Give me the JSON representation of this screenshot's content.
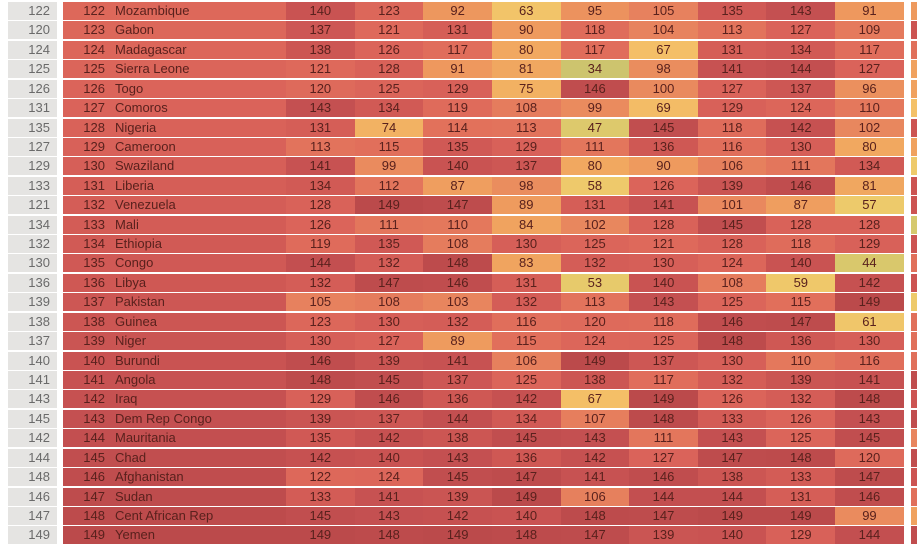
{
  "style": {
    "heat_text_color": "#59211d",
    "left_rank_bg": "#e5e4e2",
    "left_rank_text": "#6a6a6a",
    "row_separator": "#ffffff",
    "heat_stops": [
      [
        34,
        "#cdc46e"
      ],
      [
        47,
        "#ddc96c"
      ],
      [
        57,
        "#edca6b"
      ],
      [
        66,
        "#f4c168"
      ],
      [
        78,
        "#f1ab60"
      ],
      [
        90,
        "#ee9a5e"
      ],
      [
        103,
        "#e8855e"
      ],
      [
        115,
        "#e16f5b"
      ],
      [
        127,
        "#da635a"
      ],
      [
        136,
        "#cf5854"
      ],
      [
        143,
        "#c45051"
      ],
      [
        149,
        "#bb4a4b"
      ]
    ]
  },
  "chart_data": {
    "type": "heatmap",
    "value_range": [
      34,
      149
    ],
    "rows": [
      {
        "rank_alt": 122,
        "rank": 122,
        "country": "Mozambique",
        "values": [
          140,
          123,
          92,
          63,
          95,
          105,
          135,
          143,
          91
        ],
        "edge_color": "#ee9a5e"
      },
      {
        "rank_alt": 120,
        "rank": 123,
        "country": "Gabon",
        "values": [
          137,
          121,
          131,
          90,
          118,
          104,
          113,
          127,
          109
        ],
        "edge_color": "#cc5452"
      },
      {
        "rank_alt": 124,
        "rank": 124,
        "country": "Madagascar",
        "values": [
          138,
          126,
          117,
          80,
          117,
          67,
          131,
          134,
          117
        ],
        "edge_color": "#e0705b"
      },
      {
        "rank_alt": 125,
        "rank": 125,
        "country": "Sierra Leone",
        "values": [
          121,
          128,
          91,
          81,
          34,
          98,
          141,
          144,
          127
        ],
        "edge_color": "#f0a25f"
      },
      {
        "rank_alt": 126,
        "rank": 126,
        "country": "Togo",
        "values": [
          120,
          125,
          129,
          75,
          146,
          100,
          127,
          137,
          96
        ],
        "edge_color": "#f0a25f"
      },
      {
        "rank_alt": 131,
        "rank": 127,
        "country": "Comoros",
        "values": [
          143,
          134,
          119,
          108,
          99,
          69,
          129,
          124,
          110
        ],
        "edge_color": "#f4c168"
      },
      {
        "rank_alt": 135,
        "rank": 128,
        "country": "Nigeria",
        "values": [
          131,
          74,
          114,
          113,
          47,
          145,
          118,
          142,
          102
        ],
        "edge_color": "#cc5452"
      },
      {
        "rank_alt": 127,
        "rank": 129,
        "country": "Cameroon",
        "values": [
          113,
          115,
          135,
          129,
          111,
          136,
          116,
          130,
          80
        ],
        "edge_color": "#f0a25f"
      },
      {
        "rank_alt": 129,
        "rank": 130,
        "country": "Swaziland",
        "values": [
          141,
          99,
          140,
          137,
          80,
          90,
          106,
          111,
          134
        ],
        "edge_color": "#eeca6b"
      },
      {
        "rank_alt": 133,
        "rank": 131,
        "country": "Liberia",
        "values": [
          134,
          112,
          87,
          98,
          58,
          126,
          139,
          146,
          81
        ],
        "edge_color": "#cc5452"
      },
      {
        "rank_alt": 121,
        "rank": 132,
        "country": "Venezuela",
        "values": [
          128,
          149,
          147,
          89,
          131,
          141,
          101,
          87,
          57
        ],
        "edge_color": "#cc5452"
      },
      {
        "rank_alt": 134,
        "rank": 133,
        "country": "Mali",
        "values": [
          126,
          111,
          110,
          84,
          102,
          128,
          145,
          128,
          128
        ],
        "edge_color": "#d5c96e"
      },
      {
        "rank_alt": 132,
        "rank": 134,
        "country": "Ethiopia",
        "values": [
          119,
          135,
          108,
          130,
          125,
          121,
          128,
          118,
          129
        ],
        "edge_color": "#cc5452"
      },
      {
        "rank_alt": 130,
        "rank": 135,
        "country": "Congo",
        "values": [
          144,
          132,
          148,
          83,
          132,
          130,
          124,
          140,
          44
        ],
        "edge_color": "#e0705b"
      },
      {
        "rank_alt": 136,
        "rank": 136,
        "country": "Libya",
        "values": [
          132,
          147,
          146,
          131,
          53,
          140,
          108,
          59,
          142
        ],
        "edge_color": "#cc5452"
      },
      {
        "rank_alt": 139,
        "rank": 137,
        "country": "Pakistan",
        "values": [
          105,
          108,
          103,
          132,
          113,
          143,
          125,
          115,
          149
        ],
        "edge_color": "#eeca6b"
      },
      {
        "rank_alt": 138,
        "rank": 138,
        "country": "Guinea",
        "values": [
          123,
          130,
          132,
          116,
          120,
          118,
          146,
          147,
          61
        ],
        "edge_color": "#e0705b"
      },
      {
        "rank_alt": 137,
        "rank": 139,
        "country": "Niger",
        "values": [
          130,
          127,
          89,
          115,
          124,
          125,
          148,
          136,
          130
        ],
        "edge_color": "#e0705b"
      },
      {
        "rank_alt": 140,
        "rank": 140,
        "country": "Burundi",
        "values": [
          146,
          139,
          141,
          106,
          149,
          137,
          130,
          110,
          116
        ],
        "edge_color": "#e0705b"
      },
      {
        "rank_alt": 141,
        "rank": 141,
        "country": "Angola",
        "values": [
          148,
          145,
          137,
          125,
          138,
          117,
          132,
          139,
          141
        ],
        "edge_color": "#c04d4e"
      },
      {
        "rank_alt": 143,
        "rank": 142,
        "country": "Iraq",
        "values": [
          129,
          146,
          136,
          142,
          67,
          149,
          126,
          132,
          148
        ],
        "edge_color": "#cc5452"
      },
      {
        "rank_alt": 145,
        "rank": 143,
        "country": "Dem Rep Congo",
        "values": [
          139,
          137,
          144,
          134,
          107,
          148,
          133,
          126,
          143
        ],
        "edge_color": "#c04d4e"
      },
      {
        "rank_alt": 142,
        "rank": 144,
        "country": "Mauritania",
        "values": [
          135,
          142,
          138,
          145,
          143,
          111,
          143,
          125,
          145
        ],
        "edge_color": "#e8855e"
      },
      {
        "rank_alt": 144,
        "rank": 145,
        "country": "Chad",
        "values": [
          142,
          140,
          143,
          136,
          142,
          127,
          147,
          148,
          120
        ],
        "edge_color": "#c04d4e"
      },
      {
        "rank_alt": 148,
        "rank": 146,
        "country": "Afghanistan",
        "values": [
          122,
          124,
          145,
          147,
          141,
          146,
          138,
          133,
          147
        ],
        "edge_color": "#cc5452"
      },
      {
        "rank_alt": 146,
        "rank": 147,
        "country": "Sudan",
        "values": [
          133,
          141,
          139,
          149,
          106,
          144,
          144,
          131,
          146
        ],
        "edge_color": "#e0705b"
      },
      {
        "rank_alt": 147,
        "rank": 148,
        "country": "Cent African Rep",
        "values": [
          145,
          143,
          142,
          140,
          148,
          147,
          149,
          149,
          99
        ],
        "edge_color": "#f0a25f"
      },
      {
        "rank_alt": 149,
        "rank": 149,
        "country": "Yemen",
        "values": [
          149,
          148,
          149,
          148,
          147,
          139,
          140,
          129,
          144
        ],
        "edge_color": "#c04d4e"
      }
    ]
  }
}
